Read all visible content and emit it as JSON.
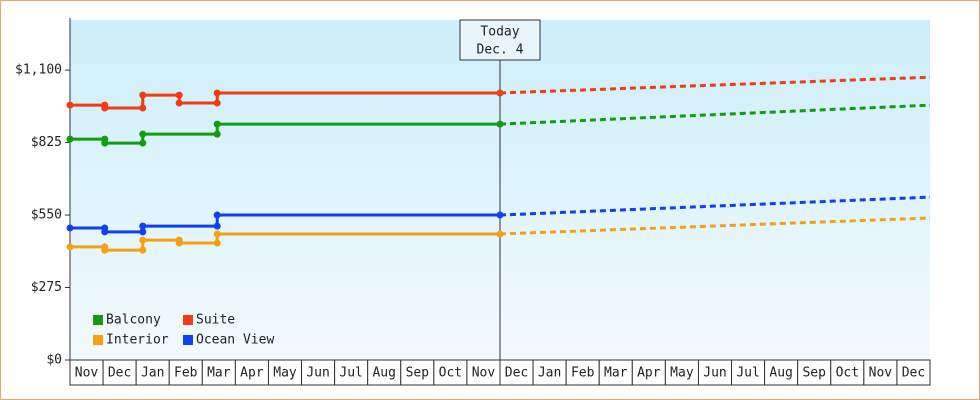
{
  "chart_data": {
    "type": "step-line",
    "categories": [
      "Nov",
      "Dec",
      "Jan",
      "Feb",
      "Mar",
      "Apr",
      "May",
      "Jun",
      "Jul",
      "Aug",
      "Sep",
      "Oct",
      "Nov",
      "Dec",
      "Jan",
      "Feb",
      "Mar",
      "Apr",
      "May",
      "Jun",
      "Jul",
      "Aug",
      "Sep",
      "Oct",
      "Nov",
      "Dec"
    ],
    "xlim": [
      0,
      26
    ],
    "ylim": [
      0,
      1290
    ],
    "yticks": [
      {
        "value": 0,
        "label": "$0"
      },
      {
        "value": 275,
        "label": "$275"
      },
      {
        "value": 550,
        "label": "$550"
      },
      {
        "value": 825,
        "label": "$825"
      },
      {
        "value": 1100,
        "label": "$1,100"
      }
    ],
    "today": {
      "x": 13,
      "label": [
        "Today",
        "Dec. 4"
      ]
    },
    "series": [
      {
        "name": "Balcony",
        "color": "#109e10",
        "x": [
          0,
          1.05,
          1.05,
          2.2,
          2.2,
          4.45,
          4.45,
          13
        ],
        "values": [
          838,
          838,
          823,
          823,
          857,
          857,
          895,
          895
        ],
        "forecast_x": [
          13,
          26
        ],
        "forecast_values": [
          895,
          967
        ]
      },
      {
        "name": "Suite",
        "color": "#f03c10",
        "x": [
          0,
          1.05,
          1.05,
          2.2,
          2.2,
          3.3,
          3.3,
          4.45,
          4.45,
          13
        ],
        "values": [
          967,
          967,
          956,
          956,
          1005,
          1005,
          975,
          975,
          1013,
          1013
        ],
        "forecast_x": [
          13,
          26
        ],
        "forecast_values": [
          1013,
          1073
        ]
      },
      {
        "name": "Interior",
        "color": "#f5a010",
        "x": [
          0,
          1.05,
          1.05,
          2.2,
          2.2,
          3.3,
          3.3,
          4.45,
          4.45,
          13
        ],
        "values": [
          429,
          429,
          417,
          417,
          455,
          455,
          444,
          444,
          478,
          478
        ],
        "forecast_x": [
          13,
          26
        ],
        "forecast_values": [
          478,
          539
        ]
      },
      {
        "name": "Ocean View",
        "color": "#1040f0",
        "x": [
          0,
          1.05,
          1.05,
          2.2,
          2.2,
          4.45,
          4.45,
          13
        ],
        "values": [
          501,
          501,
          486,
          486,
          508,
          508,
          550,
          550
        ],
        "forecast_x": [
          13,
          26
        ],
        "forecast_values": [
          550,
          618
        ]
      }
    ]
  }
}
